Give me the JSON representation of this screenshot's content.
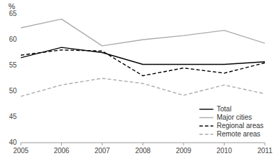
{
  "chart_data": {
    "type": "line",
    "y_label": "%",
    "x": [
      2005,
      2006,
      2007,
      2008,
      2009,
      2010,
      2011
    ],
    "xlim": [
      2005,
      2011
    ],
    "xticks": [
      2005,
      2006,
      2007,
      2008,
      2009,
      2010,
      2011
    ],
    "ylim": [
      40,
      65
    ],
    "yticks": [
      40,
      45,
      50,
      55,
      60,
      65
    ],
    "grid": false,
    "legend": "lower right",
    "series": [
      {
        "name": "Total",
        "color": "#000000",
        "line_style": "solid",
        "values": [
          56.5,
          58.5,
          57.5,
          55.2,
          55.2,
          55.2,
          55.7
        ]
      },
      {
        "name": "Major cities",
        "color": "#aaaaaa",
        "line_style": "solid",
        "values": [
          62.3,
          64.0,
          58.8,
          60.0,
          60.8,
          61.8,
          59.3
        ]
      },
      {
        "name": "Regional areas",
        "color": "#000000",
        "line_style": "dashed",
        "values": [
          57.0,
          58.0,
          57.8,
          53.0,
          54.5,
          53.5,
          55.5
        ]
      },
      {
        "name": "Remote areas",
        "color": "#aaaaaa",
        "line_style": "dashed",
        "values": [
          49.0,
          51.2,
          52.5,
          51.5,
          49.2,
          51.2,
          49.5
        ]
      }
    ]
  }
}
